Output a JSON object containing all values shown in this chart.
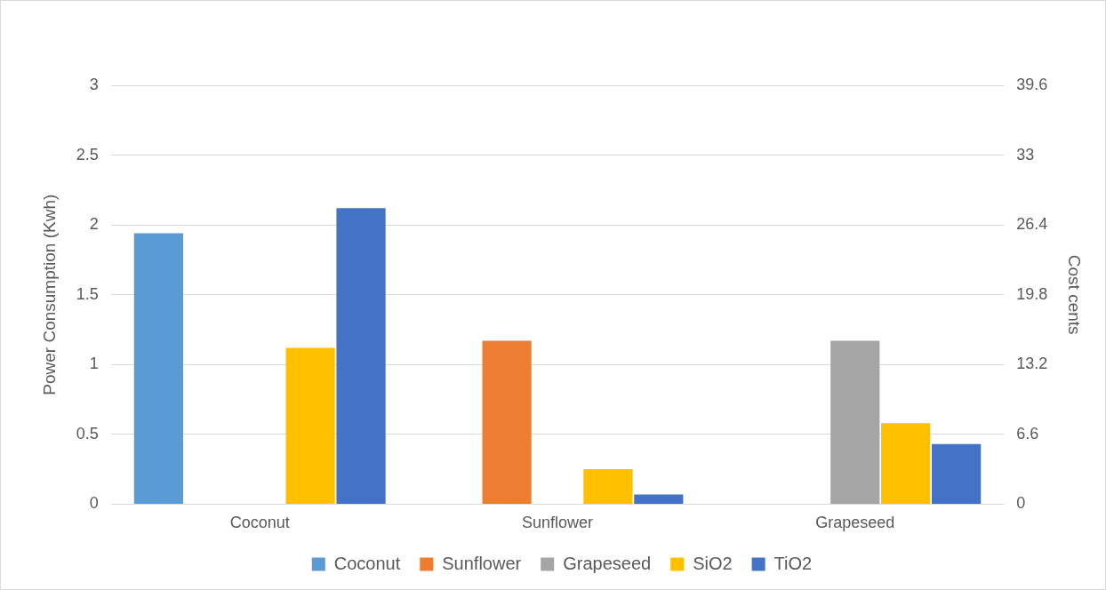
{
  "chart_data": {
    "type": "bar",
    "categories": [
      "Coconut",
      "Sunflower",
      "Grapeseed"
    ],
    "ylabel": "Power Consumption (Kwh)",
    "y2label": "Cost cents",
    "ylim": [
      0,
      3
    ],
    "yticks": [
      0,
      0.5,
      1,
      1.5,
      2,
      2.5,
      3
    ],
    "y2lim": [
      0,
      39.6
    ],
    "y2ticks": [
      0,
      6.6,
      13.2,
      19.8,
      26.4,
      33,
      39.6
    ],
    "grid": "y",
    "legend": "bottom",
    "series": [
      {
        "name": "Coconut",
        "color": "#5b9bd5",
        "values": [
          1.94,
          null,
          null
        ]
      },
      {
        "name": "Sunflower",
        "color": "#ed7d31",
        "values": [
          null,
          1.17,
          null
        ]
      },
      {
        "name": "Grapeseed",
        "color": "#a5a5a5",
        "values": [
          null,
          null,
          1.17
        ]
      },
      {
        "name": "SiO2",
        "color": "#ffc000",
        "values": [
          1.12,
          0.25,
          0.58
        ]
      },
      {
        "name": "TiO2",
        "color": "#4472c4",
        "values": [
          2.12,
          0.07,
          0.43
        ]
      }
    ]
  }
}
